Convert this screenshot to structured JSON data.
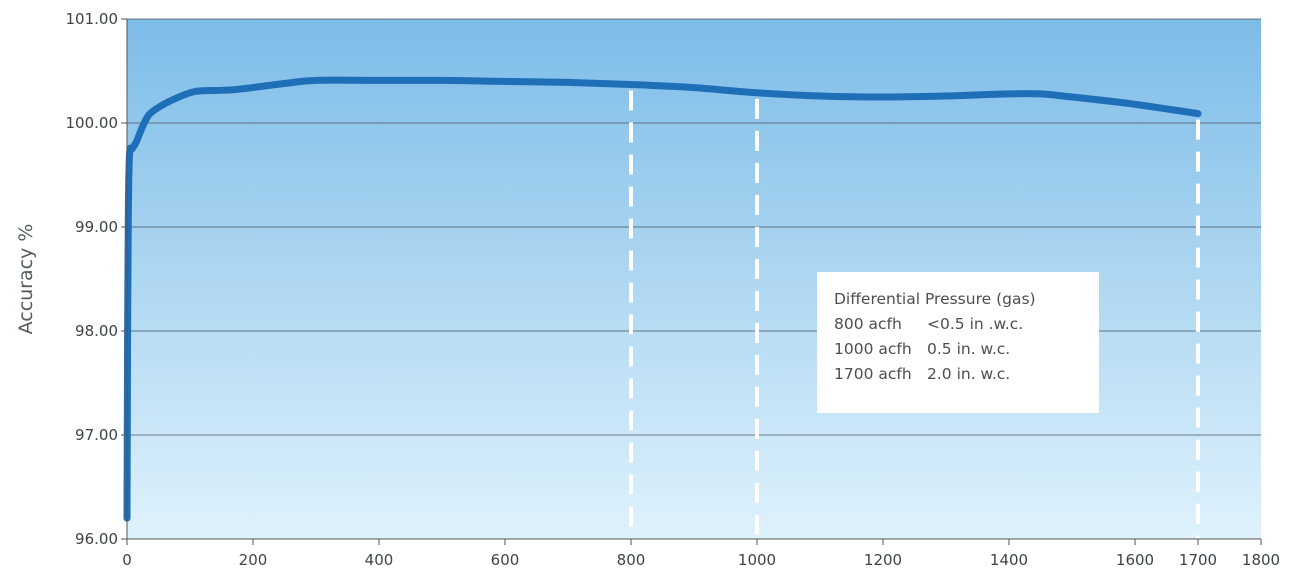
{
  "chart_data": {
    "type": "line",
    "title": "",
    "xlabel": "",
    "ylabel": "Accuracy %",
    "xlim": [
      0,
      1800
    ],
    "ylim": [
      96,
      101
    ],
    "x_ticks": [
      0,
      200,
      400,
      600,
      800,
      1000,
      1200,
      1400,
      1600,
      1700,
      1800
    ],
    "y_ticks": [
      "96.00",
      "97.00",
      "98.00",
      "99.00",
      "100.00",
      "101.00"
    ],
    "grid": "horizontal",
    "background_gradient": [
      "#7dbce8",
      "#dff2fc"
    ],
    "line_color": "#1f6fb8",
    "reference_lines_x": [
      800,
      1000,
      1700
    ],
    "series": [
      {
        "x": [
          0,
          1,
          2,
          4,
          8,
          15,
          25,
          35,
          50,
          75,
          100,
          120,
          170,
          250,
          300,
          400,
          500,
          600,
          700,
          800,
          900,
          1000,
          1100,
          1200,
          1300,
          1400,
          1450,
          1500,
          1600,
          1700
        ],
        "values": [
          96.2,
          98.0,
          99.1,
          99.7,
          99.75,
          99.82,
          99.97,
          100.08,
          100.15,
          100.23,
          100.29,
          100.31,
          100.32,
          100.38,
          100.41,
          100.41,
          100.41,
          100.4,
          100.39,
          100.37,
          100.34,
          100.29,
          100.26,
          100.25,
          100.26,
          100.28,
          100.28,
          100.25,
          100.18,
          100.09
        ]
      }
    ]
  },
  "legend": {
    "title": "Differential Pressure (gas)",
    "rows": [
      {
        "rate": "800 acfh",
        "pressure": "<0.5 in .w.c."
      },
      {
        "rate": "1000 acfh",
        "pressure": "0.5 in. w.c."
      },
      {
        "rate": "1700 acfh",
        "pressure": "2.0 in. w.c."
      }
    ]
  }
}
